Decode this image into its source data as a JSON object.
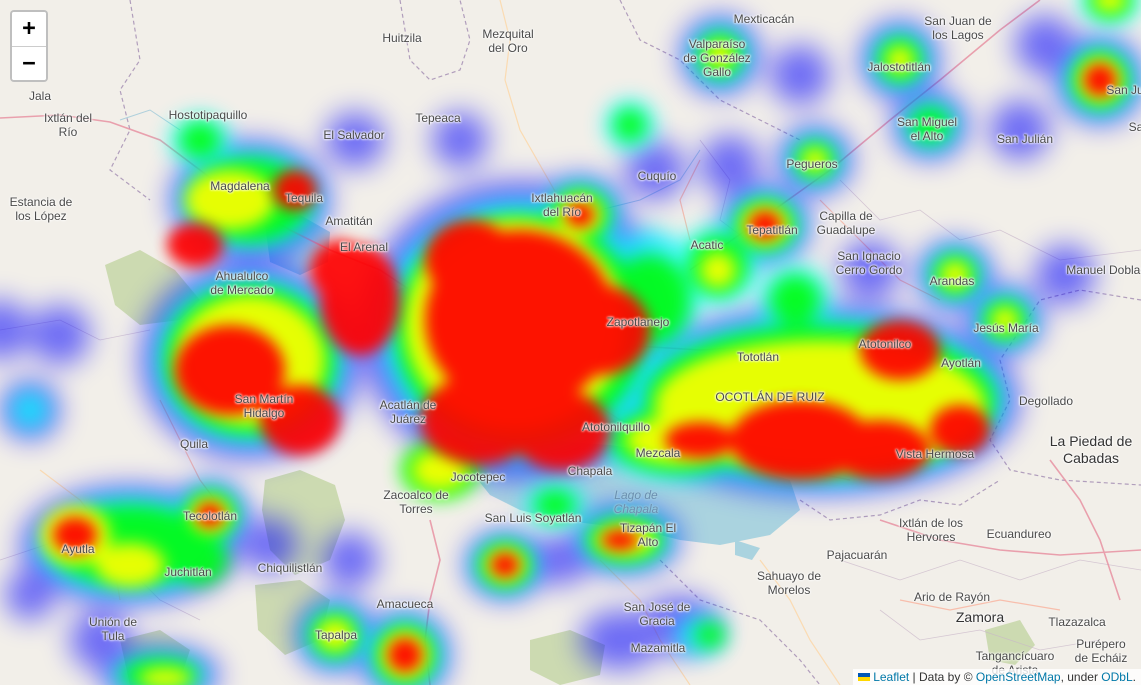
{
  "places": [
    {
      "name": "Huitzila",
      "kind": "town"
    },
    {
      "name": "Mezquital\ndel Oro",
      "kind": "town"
    },
    {
      "name": "Mexticacán",
      "kind": "town"
    },
    {
      "name": "San Juan de\nlos Lagos",
      "kind": "town"
    },
    {
      "name": "Valparaíso\nde González\nGallo",
      "kind": "town"
    },
    {
      "name": "Jalostotitlán",
      "kind": "town"
    },
    {
      "name": "San Miguel\nel Alto",
      "kind": "town"
    },
    {
      "name": "San Julián",
      "kind": "town"
    },
    {
      "name": "Jala",
      "kind": "town"
    },
    {
      "name": "Ixtlán del\nRío",
      "kind": "town"
    },
    {
      "name": "Hostotipaquillo",
      "kind": "town"
    },
    {
      "name": "Tepeaca",
      "kind": "town"
    },
    {
      "name": "El Salvador",
      "kind": "town"
    },
    {
      "name": "Cuquío",
      "kind": "town"
    },
    {
      "name": "Pegueros",
      "kind": "town"
    },
    {
      "name": "Estancia de\nlos López",
      "kind": "town"
    },
    {
      "name": "Magdalena",
      "kind": "town"
    },
    {
      "name": "Tequila",
      "kind": "town"
    },
    {
      "name": "Ixtlahuacán\ndel Río",
      "kind": "town"
    },
    {
      "name": "Capilla de\nGuadalupe",
      "kind": "town"
    },
    {
      "name": "Amatitán",
      "kind": "town"
    },
    {
      "name": "Tepatitlán",
      "kind": "town"
    },
    {
      "name": "El Arenal",
      "kind": "town"
    },
    {
      "name": "Acatic",
      "kind": "town"
    },
    {
      "name": "San Ignacio\nCerro Gordo",
      "kind": "town"
    },
    {
      "name": "Manuel Doblado",
      "kind": "town"
    },
    {
      "name": "Ahualulco\nde Mercado",
      "kind": "town"
    },
    {
      "name": "Arandas",
      "kind": "town"
    },
    {
      "name": "Zapotlanejo",
      "kind": "town"
    },
    {
      "name": "Jesús María",
      "kind": "town"
    },
    {
      "name": "Tototlán",
      "kind": "town"
    },
    {
      "name": "Atotonilco",
      "kind": "town"
    },
    {
      "name": "Ayotlán",
      "kind": "town"
    },
    {
      "name": "San Martín\nHidalgo",
      "kind": "town"
    },
    {
      "name": "Acatlán de\nJuárez",
      "kind": "town"
    },
    {
      "name": "OCOTLÁN DE RUIZ",
      "kind": "town"
    },
    {
      "name": "Degollado",
      "kind": "town"
    },
    {
      "name": "Quila",
      "kind": "town"
    },
    {
      "name": "Atotonilquillo",
      "kind": "town"
    },
    {
      "name": "Mezcala",
      "kind": "town"
    },
    {
      "name": "La Piedad de\nCabadas",
      "kind": "city"
    },
    {
      "name": "Jocotepec",
      "kind": "town"
    },
    {
      "name": "Chapala",
      "kind": "town"
    },
    {
      "name": "Vista Hermosa",
      "kind": "town"
    },
    {
      "name": "Lago de\nChapala",
      "kind": "water"
    },
    {
      "name": "Zacoalco de\nTorres",
      "kind": "town"
    },
    {
      "name": "Tecolotlán",
      "kind": "town"
    },
    {
      "name": "San Luis Soyatlán",
      "kind": "town"
    },
    {
      "name": "Tizapán El\nAlto",
      "kind": "town"
    },
    {
      "name": "Ixtlán de los\nHervores",
      "kind": "town"
    },
    {
      "name": "Ecuandureo",
      "kind": "town"
    },
    {
      "name": "Ayutla",
      "kind": "town"
    },
    {
      "name": "Juchitlán",
      "kind": "town"
    },
    {
      "name": "Chiquilistlán",
      "kind": "town"
    },
    {
      "name": "Pajacuarán",
      "kind": "town"
    },
    {
      "name": "Sahuayo de\nMorelos",
      "kind": "town"
    },
    {
      "name": "Ario de Rayón",
      "kind": "town"
    },
    {
      "name": "Unión de\nTula",
      "kind": "town"
    },
    {
      "name": "Amacueca",
      "kind": "town"
    },
    {
      "name": "Zamora",
      "kind": "city"
    },
    {
      "name": "Tlazazalca",
      "kind": "town"
    },
    {
      "name": "San José de\nGracia",
      "kind": "town"
    },
    {
      "name": "Tapalpa",
      "kind": "town"
    },
    {
      "name": "Mazamitla",
      "kind": "town"
    },
    {
      "name": "Tangancícuaro\nde Arista",
      "kind": "town"
    },
    {
      "name": "Purépero\nde Echáiz",
      "kind": "town"
    },
    {
      "name": "San Ju",
      "kind": "town"
    },
    {
      "name": "Sa",
      "kind": "town"
    }
  ],
  "controls": {
    "zoom_in": "+",
    "zoom_out": "−"
  },
  "attribution": {
    "leaflet": "Leaflet",
    "data_prefix": " | Data by © ",
    "osm": "OpenStreetMap",
    "under": ", under ",
    "license": "ODbL",
    "end": "."
  },
  "colors": {
    "background": "#f2efe9",
    "water": "#aad3df",
    "park": "#c8d7ab",
    "heat_gradient": [
      "#0000ff",
      "#00ffff",
      "#00ff00",
      "#ffff00",
      "#ff0000"
    ]
  }
}
